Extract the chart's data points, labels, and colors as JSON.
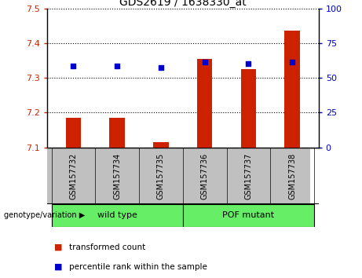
{
  "title": "GDS2619 / 1638330_at",
  "samples": [
    "GSM157732",
    "GSM157734",
    "GSM157735",
    "GSM157736",
    "GSM157737",
    "GSM157738"
  ],
  "red_values": [
    7.185,
    7.185,
    7.115,
    7.355,
    7.325,
    7.435
  ],
  "blue_values": [
    7.335,
    7.335,
    7.33,
    7.345,
    7.34,
    7.345
  ],
  "ylim_left": [
    7.1,
    7.5
  ],
  "ylim_right": [
    0,
    100
  ],
  "yticks_left": [
    7.1,
    7.2,
    7.3,
    7.4,
    7.5
  ],
  "yticks_right": [
    0,
    25,
    50,
    75,
    100
  ],
  "left_color": "#cc2200",
  "right_color": "#0000cc",
  "group1_label": "wild type",
  "group2_label": "POF mutant",
  "group_color": "#66ee66",
  "genotype_label": "genotype/variation",
  "legend_red": "transformed count",
  "legend_blue": "percentile rank within the sample",
  "bar_width": 0.35,
  "gray_color": "#c0c0c0",
  "group_border_color": "#000000"
}
